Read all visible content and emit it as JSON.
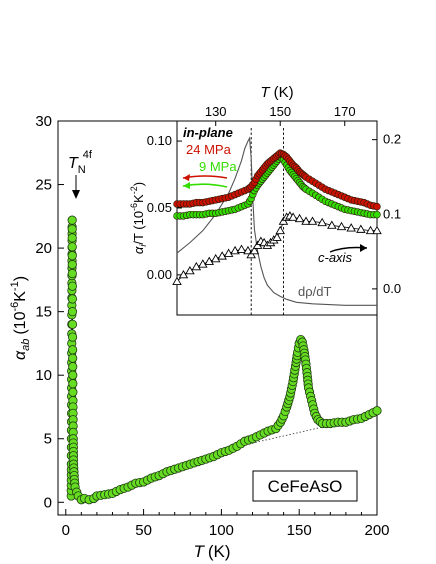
{
  "chart_data": [
    {
      "type": "scatter",
      "xlabel_symbol": "T",
      "xlabel_unit": "(K)",
      "ylabel_symbol": "α",
      "ylabel_sub": "ab",
      "ylabel_unit_open": "(10",
      "ylabel_unit_exp1": "-6",
      "ylabel_unit_mid": "K",
      "ylabel_unit_exp2": "-1",
      "ylabel_unit_close": ")",
      "xlim": [
        -5,
        200
      ],
      "ylim": [
        -1,
        30
      ],
      "xticks": [
        0,
        50,
        100,
        150,
        200
      ],
      "yticks": [
        0,
        5,
        10,
        15,
        20,
        25,
        30
      ],
      "annotation_symbol": "T",
      "annotation_sub": "N",
      "annotation_sup": "4f",
      "sample_label": "CeFeAsO",
      "marker_color": "#66dd22",
      "series": [
        {
          "x": [
            3.5,
            3.6,
            3.7,
            3.8,
            3.9,
            4.0,
            4.1,
            4.2,
            4.4,
            4.6,
            4.8,
            5.0,
            5.5,
            6.0,
            7.0,
            8.0,
            10,
            12,
            15,
            18,
            20,
            25,
            30,
            35,
            40,
            45,
            50,
            55,
            60,
            65,
            70,
            75,
            80,
            85,
            90,
            95,
            100,
            105,
            110,
            115,
            120,
            125,
            130,
            135,
            138,
            140,
            142,
            144,
            146,
            148,
            149,
            150,
            151,
            152,
            153,
            154,
            155,
            156,
            158,
            160,
            162,
            165,
            170,
            175,
            180,
            185,
            190,
            195,
            200
          ],
          "y": [
            0.5,
            3,
            7,
            11,
            15.5,
            19,
            22.2,
            18,
            12,
            8,
            5,
            3,
            1.8,
            1.2,
            0.8,
            0.5,
            0.2,
            0.3,
            0.2,
            0.3,
            0.5,
            0.6,
            0.7,
            1.0,
            1.2,
            1.5,
            1.6,
            1.9,
            2.1,
            2.4,
            2.6,
            2.8,
            3.0,
            3.2,
            3.4,
            3.6,
            3.9,
            4.1,
            4.4,
            4.8,
            5.0,
            5.3,
            5.6,
            5.8,
            6.3,
            6.8,
            7.5,
            8.3,
            9.5,
            11.0,
            11.8,
            12.5,
            12.8,
            12.6,
            12.0,
            11.2,
            10.2,
            9.0,
            8.0,
            7.0,
            6.5,
            6.2,
            6.2,
            6.3,
            6.3,
            6.5,
            6.6,
            6.9,
            7.2
          ]
        }
      ],
      "baseline": {
        "x": [
          100,
          125,
          150,
          175,
          200
        ],
        "y": [
          4.0,
          4.8,
          5.5,
          6.2,
          7.1
        ]
      }
    },
    {
      "type": "scatter",
      "xlabel_symbol": "T",
      "xlabel_unit": "(K)",
      "ylabel_symbol": "α",
      "ylabel_sub": "i",
      "ylabel_unit_open": "/T (10",
      "ylabel_unit_exp1": "-6",
      "ylabel_unit_mid": "K",
      "ylabel_unit_exp2": "-2",
      "ylabel_unit_close": ")",
      "xlim": [
        118,
        180
      ],
      "ylim_left": [
        -0.03,
        0.115
      ],
      "ylim_right": [
        -0.035,
        0.225
      ],
      "xticks": [
        130,
        150,
        170
      ],
      "yticks_left": [
        "0.00",
        "0.05",
        "0.10"
      ],
      "yticks_left_values": [
        0.0,
        0.05,
        0.1
      ],
      "yticks_right": [
        "0.0",
        "0.1",
        "0.2"
      ],
      "yticks_right_values": [
        0.0,
        0.1,
        0.2
      ],
      "vlines": [
        141,
        151
      ],
      "labels": {
        "inplane": "in-plane",
        "p24": "24 MPa",
        "p9": "9 MPa",
        "caxis": "c-axis",
        "drho": "dρ/dT"
      },
      "colors": {
        "p24": "#cc1100",
        "p9": "#33dd00"
      },
      "series": [
        {
          "name": "24 MPa",
          "x": [
            118,
            120,
            122,
            124,
            126,
            128,
            130,
            132,
            134,
            136,
            138,
            140,
            141,
            142,
            143,
            144,
            145,
            146,
            147,
            148,
            149,
            150,
            151,
            152,
            153,
            154,
            155,
            156,
            157,
            158,
            160,
            162,
            164,
            166,
            168,
            170,
            172,
            174,
            176,
            178,
            180
          ],
          "y": [
            0.053,
            0.053,
            0.053,
            0.054,
            0.054,
            0.055,
            0.056,
            0.057,
            0.058,
            0.06,
            0.062,
            0.064,
            0.066,
            0.069,
            0.074,
            0.077,
            0.08,
            0.083,
            0.085,
            0.087,
            0.089,
            0.091,
            0.09,
            0.088,
            0.085,
            0.082,
            0.08,
            0.077,
            0.075,
            0.073,
            0.07,
            0.067,
            0.064,
            0.062,
            0.06,
            0.058,
            0.056,
            0.055,
            0.054,
            0.052,
            0.051
          ]
        },
        {
          "name": "9 MPa",
          "x": [
            118,
            120,
            122,
            124,
            126,
            128,
            130,
            132,
            134,
            136,
            138,
            140,
            141,
            142,
            143,
            144,
            145,
            146,
            147,
            148,
            149,
            150,
            151,
            152,
            153,
            154,
            155,
            156,
            157,
            158,
            160,
            162,
            164,
            166,
            168,
            170,
            172,
            174,
            176,
            178,
            180
          ],
          "y": [
            0.044,
            0.044,
            0.045,
            0.045,
            0.045,
            0.046,
            0.046,
            0.047,
            0.048,
            0.049,
            0.051,
            0.053,
            0.057,
            0.063,
            0.067,
            0.07,
            0.073,
            0.076,
            0.079,
            0.082,
            0.085,
            0.088,
            0.086,
            0.082,
            0.078,
            0.075,
            0.072,
            0.069,
            0.066,
            0.064,
            0.061,
            0.058,
            0.055,
            0.053,
            0.051,
            0.049,
            0.048,
            0.047,
            0.046,
            0.045,
            0.045
          ]
        },
        {
          "name": "c-axis",
          "x": [
            118,
            120,
            122,
            124,
            126,
            128,
            130,
            132,
            134,
            136,
            138,
            140,
            141,
            142,
            143,
            144,
            145,
            146,
            147,
            148,
            149,
            150,
            151,
            152,
            153,
            154,
            156,
            158,
            160,
            163,
            166,
            169,
            172,
            175,
            178,
            180
          ],
          "y": [
            -0.005,
            0.0,
            0.003,
            0.006,
            0.008,
            0.01,
            0.012,
            0.014,
            0.016,
            0.018,
            0.019,
            0.018,
            0.015,
            0.018,
            0.022,
            0.025,
            0.024,
            0.022,
            0.024,
            0.026,
            0.028,
            0.033,
            0.04,
            0.043,
            0.044,
            0.043,
            0.042,
            0.04,
            0.04,
            0.039,
            0.037,
            0.036,
            0.035,
            0.034,
            0.033,
            0.033
          ]
        },
        {
          "name": "dρ/dT",
          "axis": "right",
          "x": [
            118,
            122,
            126,
            130,
            134,
            136,
            138,
            139,
            140,
            140.5,
            141,
            141.5,
            142,
            143,
            144,
            145,
            146,
            147,
            148,
            150,
            152,
            155,
            160,
            165,
            170,
            175,
            180
          ],
          "y": [
            0.048,
            0.062,
            0.078,
            0.1,
            0.128,
            0.148,
            0.172,
            0.188,
            0.198,
            0.202,
            0.175,
            0.12,
            0.08,
            0.05,
            0.03,
            0.015,
            0.005,
            0.0,
            -0.005,
            -0.01,
            -0.014,
            -0.018,
            -0.02,
            -0.021,
            -0.022,
            -0.022,
            -0.022
          ]
        }
      ]
    }
  ]
}
